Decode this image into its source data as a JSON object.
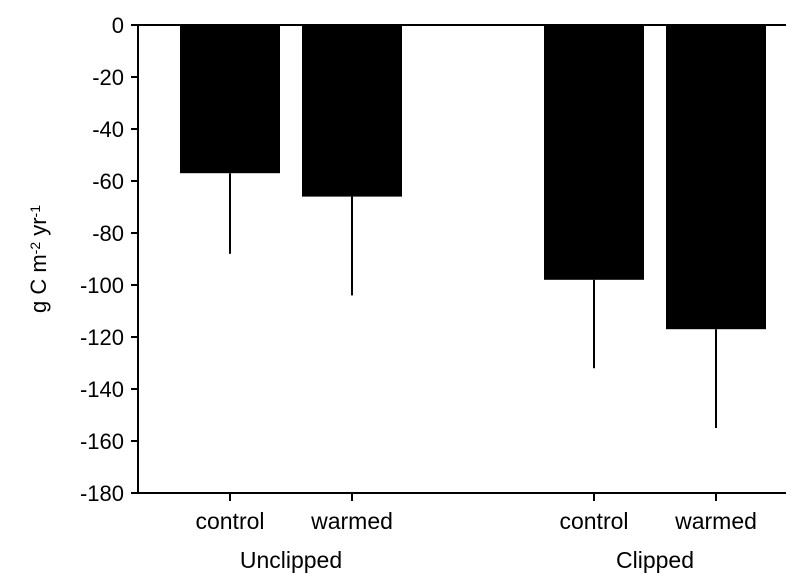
{
  "chart_data": {
    "type": "bar",
    "ylabel": {
      "parts": [
        {
          "text": "g C m",
          "sup": false
        },
        {
          "text": "-2",
          "sup": true
        },
        {
          "text": " yr",
          "sup": false
        },
        {
          "text": "-1",
          "sup": true
        }
      ]
    },
    "ylim": [
      -180,
      0
    ],
    "yticks": [
      0,
      -20,
      -40,
      -60,
      -80,
      -100,
      -120,
      -140,
      -160,
      -180
    ],
    "grid": false,
    "legend": "none",
    "bar_color": "#000000",
    "groups": [
      {
        "label": "Unclipped",
        "bars": [
          {
            "category": "control",
            "value": -57,
            "error": 31
          },
          {
            "category": "warmed",
            "value": -66,
            "error": 38
          }
        ]
      },
      {
        "label": "Clipped",
        "bars": [
          {
            "category": "control",
            "value": -98,
            "error": 34
          },
          {
            "category": "warmed",
            "value": -117,
            "error": 38
          }
        ]
      }
    ]
  }
}
